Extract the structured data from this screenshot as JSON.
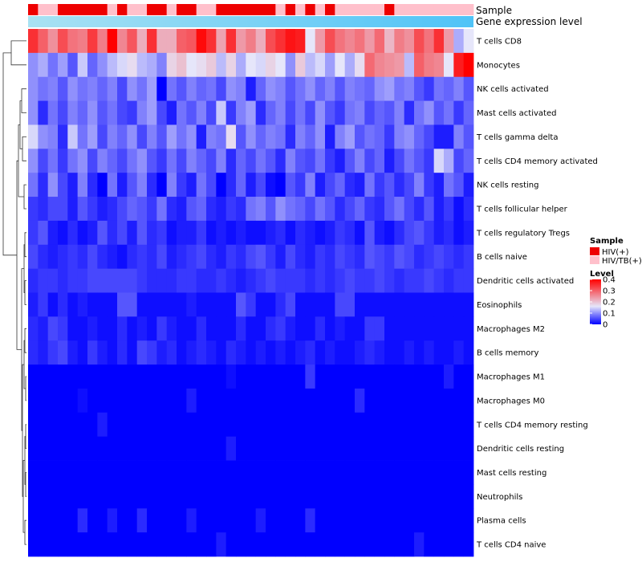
{
  "chart_data": {
    "type": "heatmap",
    "title": "",
    "annotation_labels": [
      "Sample",
      "Gene expression level"
    ],
    "rows": [
      "T cells CD8",
      "Monocytes",
      "NK cells activated",
      "Mast cells activated",
      "T cells gamma delta",
      "T cells CD4 memory activated",
      "NK cells resting",
      "T cells follicular helper",
      "T cells regulatory  Tregs",
      "B cells naive",
      "Dendritic cells activated",
      "Eosinophils",
      "Macrophages M2",
      "B cells memory",
      "Macrophages M1",
      "Macrophages M0",
      "T cells CD4 memory resting",
      "Dendritic cells resting",
      "Mast cells resting",
      "Neutrophils",
      "Plasma cells",
      "T cells CD4 naive"
    ],
    "n_samples": 45,
    "sample_groups": [
      "HIV(+)",
      "HIV/TB(+)",
      "HIV/TB(+)",
      "HIV(+)",
      "HIV(+)",
      "HIV(+)",
      "HIV(+)",
      "HIV(+)",
      "HIV/TB(+)",
      "HIV(+)",
      "HIV/TB(+)",
      "HIV/TB(+)",
      "HIV(+)",
      "HIV(+)",
      "HIV/TB(+)",
      "HIV(+)",
      "HIV(+)",
      "HIV/TB(+)",
      "HIV/TB(+)",
      "HIV(+)",
      "HIV(+)",
      "HIV(+)",
      "HIV(+)",
      "HIV(+)",
      "HIV(+)",
      "HIV/TB(+)",
      "HIV(+)",
      "HIV/TB(+)",
      "HIV(+)",
      "HIV/TB(+)",
      "HIV(+)",
      "HIV/TB(+)",
      "HIV/TB(+)",
      "HIV/TB(+)",
      "HIV/TB(+)",
      "HIV/TB(+)",
      "HIV(+)",
      "HIV/TB(+)",
      "HIV/TB(+)",
      "HIV/TB(+)",
      "HIV/TB(+)",
      "HIV/TB(+)",
      "HIV/TB(+)",
      "HIV/TB(+)",
      "HIV/TB(+)"
    ],
    "values": [
      [
        0.35,
        0.3,
        0.25,
        0.32,
        0.28,
        0.27,
        0.34,
        0.27,
        0.4,
        0.26,
        0.31,
        0.22,
        0.35,
        0.22,
        0.22,
        0.3,
        0.31,
        0.39,
        0.35,
        0.23,
        0.35,
        0.24,
        0.27,
        0.22,
        0.32,
        0.35,
        0.38,
        0.37,
        0.16,
        0.24,
        0.32,
        0.28,
        0.26,
        0.28,
        0.24,
        0.29,
        0.21,
        0.27,
        0.25,
        0.32,
        0.28,
        0.35,
        0.24,
        0.12,
        0.16
      ],
      [
        0.1,
        0.12,
        0.08,
        0.11,
        0.06,
        0.14,
        0.07,
        0.1,
        0.13,
        0.15,
        0.17,
        0.13,
        0.12,
        0.09,
        0.18,
        0.2,
        0.16,
        0.17,
        0.19,
        0.13,
        0.18,
        0.12,
        0.16,
        0.15,
        0.18,
        0.16,
        0.1,
        0.19,
        0.13,
        0.15,
        0.11,
        0.16,
        0.12,
        0.17,
        0.29,
        0.26,
        0.25,
        0.24,
        0.13,
        0.3,
        0.27,
        0.26,
        0.16,
        0.37,
        0.4
      ],
      [
        0.1,
        0.08,
        0.09,
        0.06,
        0.1,
        0.08,
        0.09,
        0.07,
        0.09,
        0.05,
        0.1,
        0.08,
        0.11,
        0.0,
        0.08,
        0.06,
        0.09,
        0.07,
        0.08,
        0.05,
        0.1,
        0.09,
        0.02,
        0.07,
        0.1,
        0.09,
        0.06,
        0.08,
        0.1,
        0.07,
        0.09,
        0.06,
        0.09,
        0.08,
        0.07,
        0.1,
        0.11,
        0.08,
        0.09,
        0.06,
        0.04,
        0.08,
        0.07,
        0.09,
        0.06
      ],
      [
        0.1,
        0.03,
        0.08,
        0.05,
        0.09,
        0.07,
        0.1,
        0.06,
        0.08,
        0.05,
        0.04,
        0.09,
        0.11,
        0.05,
        0.02,
        0.08,
        0.06,
        0.09,
        0.05,
        0.14,
        0.04,
        0.09,
        0.11,
        0.03,
        0.07,
        0.09,
        0.05,
        0.08,
        0.05,
        0.1,
        0.06,
        0.04,
        0.08,
        0.09,
        0.05,
        0.07,
        0.06,
        0.09,
        0.03,
        0.08,
        0.1,
        0.06,
        0.08,
        0.04,
        0.07
      ],
      [
        0.15,
        0.1,
        0.09,
        0.03,
        0.14,
        0.08,
        0.11,
        0.05,
        0.09,
        0.07,
        0.1,
        0.05,
        0.09,
        0.06,
        0.11,
        0.08,
        0.1,
        0.02,
        0.09,
        0.08,
        0.17,
        0.06,
        0.1,
        0.07,
        0.09,
        0.08,
        0.03,
        0.09,
        0.07,
        0.1,
        0.02,
        0.09,
        0.11,
        0.06,
        0.08,
        0.07,
        0.04,
        0.09,
        0.1,
        0.07,
        0.05,
        0.02,
        0.02,
        0.09,
        0.06
      ],
      [
        0.1,
        0.05,
        0.08,
        0.04,
        0.08,
        0.1,
        0.05,
        0.09,
        0.07,
        0.05,
        0.08,
        0.1,
        0.06,
        0.04,
        0.08,
        0.05,
        0.09,
        0.07,
        0.05,
        0.09,
        0.03,
        0.07,
        0.05,
        0.08,
        0.06,
        0.03,
        0.09,
        0.06,
        0.05,
        0.08,
        0.04,
        0.02,
        0.06,
        0.09,
        0.05,
        0.07,
        0.02,
        0.05,
        0.08,
        0.06,
        0.04,
        0.15,
        0.12,
        0.05,
        0.07
      ],
      [
        0.08,
        0.03,
        0.1,
        0.05,
        0.02,
        0.09,
        0.03,
        0.0,
        0.08,
        0.02,
        0.06,
        0.09,
        0.03,
        0.0,
        0.09,
        0.04,
        0.02,
        0.08,
        0.05,
        0.0,
        0.03,
        0.07,
        0.02,
        0.05,
        0.01,
        0.0,
        0.06,
        0.04,
        0.09,
        0.02,
        0.05,
        0.07,
        0.03,
        0.02,
        0.08,
        0.04,
        0.06,
        0.03,
        0.05,
        0.09,
        0.04,
        0.02,
        0.08,
        0.06,
        0.02
      ],
      [
        0.04,
        0.03,
        0.05,
        0.05,
        0.02,
        0.06,
        0.04,
        0.02,
        0.03,
        0.05,
        0.07,
        0.06,
        0.04,
        0.08,
        0.03,
        0.02,
        0.06,
        0.07,
        0.03,
        0.02,
        0.04,
        0.03,
        0.08,
        0.09,
        0.06,
        0.1,
        0.08,
        0.07,
        0.05,
        0.08,
        0.06,
        0.03,
        0.05,
        0.07,
        0.04,
        0.03,
        0.06,
        0.08,
        0.05,
        0.03,
        0.06,
        0.02,
        0.04,
        0.01,
        0.03
      ],
      [
        0.04,
        0.06,
        0.02,
        0.01,
        0.03,
        0.01,
        0.02,
        0.06,
        0.03,
        0.05,
        0.02,
        0.06,
        0.03,
        0.04,
        0.01,
        0.02,
        0.02,
        0.04,
        0.01,
        0.02,
        0.01,
        0.02,
        0.01,
        0.01,
        0.02,
        0.03,
        0.01,
        0.03,
        0.02,
        0.01,
        0.02,
        0.04,
        0.03,
        0.01,
        0.06,
        0.02,
        0.01,
        0.03,
        0.05,
        0.06,
        0.04,
        0.02,
        0.03,
        0.01,
        0.02
      ],
      [
        0.05,
        0.03,
        0.02,
        0.03,
        0.04,
        0.03,
        0.05,
        0.03,
        0.02,
        0.01,
        0.03,
        0.04,
        0.03,
        0.05,
        0.02,
        0.03,
        0.04,
        0.05,
        0.03,
        0.02,
        0.04,
        0.03,
        0.05,
        0.06,
        0.04,
        0.02,
        0.05,
        0.03,
        0.02,
        0.04,
        0.03,
        0.05,
        0.04,
        0.03,
        0.06,
        0.05,
        0.04,
        0.06,
        0.05,
        0.03,
        0.04,
        0.05,
        0.04,
        0.03,
        0.04
      ],
      [
        0.03,
        0.04,
        0.04,
        0.03,
        0.04,
        0.04,
        0.05,
        0.05,
        0.05,
        0.05,
        0.05,
        0.04,
        0.03,
        0.03,
        0.03,
        0.04,
        0.04,
        0.03,
        0.03,
        0.04,
        0.03,
        0.02,
        0.03,
        0.04,
        0.05,
        0.04,
        0.04,
        0.04,
        0.03,
        0.04,
        0.03,
        0.04,
        0.05,
        0.04,
        0.04,
        0.05,
        0.04,
        0.03,
        0.04,
        0.04,
        0.05,
        0.04,
        0.03,
        0.04,
        0.04
      ],
      [
        0.02,
        0.04,
        0.01,
        0.03,
        0.01,
        0.02,
        0.01,
        0.01,
        0.01,
        0.06,
        0.06,
        0.01,
        0.01,
        0.01,
        0.01,
        0.01,
        0.02,
        0.01,
        0.01,
        0.01,
        0.01,
        0.06,
        0.04,
        0.01,
        0.01,
        0.03,
        0.05,
        0.01,
        0.01,
        0.01,
        0.01,
        0.05,
        0.05,
        0.01,
        0.01,
        0.01,
        0.01,
        0.01,
        0.01,
        0.01,
        0.01,
        0.01,
        0.01,
        0.01,
        0.01
      ],
      [
        0.03,
        0.02,
        0.05,
        0.04,
        0.01,
        0.01,
        0.02,
        0.01,
        0.01,
        0.03,
        0.01,
        0.02,
        0.01,
        0.04,
        0.02,
        0.01,
        0.01,
        0.03,
        0.01,
        0.01,
        0.01,
        0.03,
        0.01,
        0.01,
        0.03,
        0.04,
        0.02,
        0.01,
        0.01,
        0.03,
        0.01,
        0.02,
        0.01,
        0.01,
        0.04,
        0.04,
        0.01,
        0.01,
        0.01,
        0.01,
        0.01,
        0.01,
        0.01,
        0.01,
        0.01
      ],
      [
        0.03,
        0.02,
        0.04,
        0.05,
        0.02,
        0.01,
        0.04,
        0.02,
        0.01,
        0.03,
        0.01,
        0.05,
        0.04,
        0.02,
        0.03,
        0.01,
        0.02,
        0.03,
        0.02,
        0.01,
        0.03,
        0.02,
        0.01,
        0.02,
        0.01,
        0.02,
        0.01,
        0.02,
        0.03,
        0.01,
        0.02,
        0.01,
        0.01,
        0.02,
        0.03,
        0.02,
        0.01,
        0.01,
        0.02,
        0.01,
        0.02,
        0.01,
        0.01,
        0.02,
        0.01
      ],
      [
        0.0,
        0.0,
        0.0,
        0.0,
        0.0,
        0.0,
        0.0,
        0.0,
        0.0,
        0.0,
        0.0,
        0.0,
        0.0,
        0.0,
        0.0,
        0.0,
        0.0,
        0.0,
        0.0,
        0.0,
        0.01,
        0.0,
        0.0,
        0.0,
        0.0,
        0.0,
        0.0,
        0.0,
        0.04,
        0.0,
        0.0,
        0.0,
        0.0,
        0.0,
        0.0,
        0.0,
        0.0,
        0.0,
        0.0,
        0.0,
        0.0,
        0.0,
        0.02,
        0.0,
        0.0
      ],
      [
        0.0,
        0.0,
        0.0,
        0.0,
        0.0,
        0.01,
        0.0,
        0.0,
        0.0,
        0.0,
        0.0,
        0.0,
        0.0,
        0.0,
        0.0,
        0.0,
        0.02,
        0.0,
        0.0,
        0.0,
        0.0,
        0.0,
        0.0,
        0.0,
        0.0,
        0.0,
        0.0,
        0.0,
        0.0,
        0.0,
        0.0,
        0.0,
        0.0,
        0.03,
        0.0,
        0.0,
        0.0,
        0.0,
        0.0,
        0.0,
        0.0,
        0.0,
        0.0,
        0.0,
        0.0
      ],
      [
        0.0,
        0.0,
        0.0,
        0.0,
        0.0,
        0.0,
        0.0,
        0.02,
        0.0,
        0.0,
        0.0,
        0.0,
        0.0,
        0.0,
        0.0,
        0.0,
        0.0,
        0.0,
        0.0,
        0.0,
        0.0,
        0.0,
        0.0,
        0.0,
        0.0,
        0.0,
        0.0,
        0.0,
        0.0,
        0.0,
        0.0,
        0.0,
        0.0,
        0.0,
        0.0,
        0.0,
        0.0,
        0.0,
        0.0,
        0.0,
        0.0,
        0.0,
        0.0,
        0.0,
        0.0
      ],
      [
        0.0,
        0.0,
        0.0,
        0.0,
        0.0,
        0.0,
        0.0,
        0.0,
        0.0,
        0.0,
        0.0,
        0.0,
        0.0,
        0.0,
        0.0,
        0.0,
        0.0,
        0.0,
        0.0,
        0.0,
        0.02,
        0.0,
        0.0,
        0.0,
        0.0,
        0.0,
        0.0,
        0.0,
        0.0,
        0.0,
        0.0,
        0.0,
        0.0,
        0.0,
        0.0,
        0.0,
        0.0,
        0.0,
        0.0,
        0.0,
        0.0,
        0.0,
        0.0,
        0.0,
        0.0
      ],
      [
        0.0,
        0.0,
        0.0,
        0.0,
        0.0,
        0.0,
        0.0,
        0.0,
        0.0,
        0.0,
        0.0,
        0.0,
        0.0,
        0.0,
        0.0,
        0.0,
        0.0,
        0.0,
        0.0,
        0.0,
        0.0,
        0.0,
        0.0,
        0.0,
        0.0,
        0.0,
        0.0,
        0.0,
        0.0,
        0.0,
        0.0,
        0.0,
        0.0,
        0.0,
        0.0,
        0.0,
        0.0,
        0.0,
        0.0,
        0.0,
        0.0,
        0.0,
        0.0,
        0.0,
        0.0
      ],
      [
        0.0,
        0.0,
        0.0,
        0.0,
        0.0,
        0.0,
        0.0,
        0.0,
        0.0,
        0.0,
        0.0,
        0.0,
        0.0,
        0.0,
        0.0,
        0.0,
        0.0,
        0.0,
        0.0,
        0.0,
        0.0,
        0.0,
        0.0,
        0.0,
        0.0,
        0.0,
        0.0,
        0.0,
        0.0,
        0.0,
        0.0,
        0.0,
        0.0,
        0.0,
        0.0,
        0.0,
        0.0,
        0.0,
        0.0,
        0.0,
        0.0,
        0.0,
        0.0,
        0.0,
        0.0
      ],
      [
        0.0,
        0.0,
        0.0,
        0.0,
        0.0,
        0.03,
        0.0,
        0.0,
        0.02,
        0.0,
        0.0,
        0.03,
        0.0,
        0.0,
        0.0,
        0.0,
        0.02,
        0.0,
        0.0,
        0.0,
        0.0,
        0.0,
        0.0,
        0.02,
        0.0,
        0.0,
        0.0,
        0.0,
        0.03,
        0.0,
        0.0,
        0.0,
        0.0,
        0.0,
        0.0,
        0.0,
        0.0,
        0.0,
        0.0,
        0.0,
        0.0,
        0.0,
        0.0,
        0.0,
        0.0
      ],
      [
        0.0,
        0.0,
        0.0,
        0.0,
        0.0,
        0.0,
        0.0,
        0.0,
        0.0,
        0.0,
        0.0,
        0.0,
        0.0,
        0.0,
        0.0,
        0.0,
        0.0,
        0.0,
        0.0,
        0.02,
        0.0,
        0.0,
        0.0,
        0.0,
        0.0,
        0.0,
        0.0,
        0.0,
        0.0,
        0.0,
        0.0,
        0.0,
        0.0,
        0.0,
        0.0,
        0.0,
        0.0,
        0.0,
        0.0,
        0.02,
        0.0,
        0.0,
        0.0,
        0.0,
        0.0
      ]
    ],
    "legends": {
      "sample": {
        "title": "Sample",
        "entries": [
          {
            "label": "HIV(+)",
            "color": "#ee0000"
          },
          {
            "label": "HIV/TB(+)",
            "color": "#ffc0cb"
          }
        ]
      },
      "level": {
        "title": "Level",
        "ticks": [
          "0.4",
          "0.3",
          "0.2",
          "0.1",
          "0"
        ],
        "range": [
          0,
          0.4
        ]
      }
    },
    "colors": {
      "low": "#0000ff",
      "mid": "#e6e6fa",
      "high": "#ff0000",
      "expression_bar_start": "#a9e2f3",
      "expression_bar_end": "#4fc3f7"
    }
  }
}
